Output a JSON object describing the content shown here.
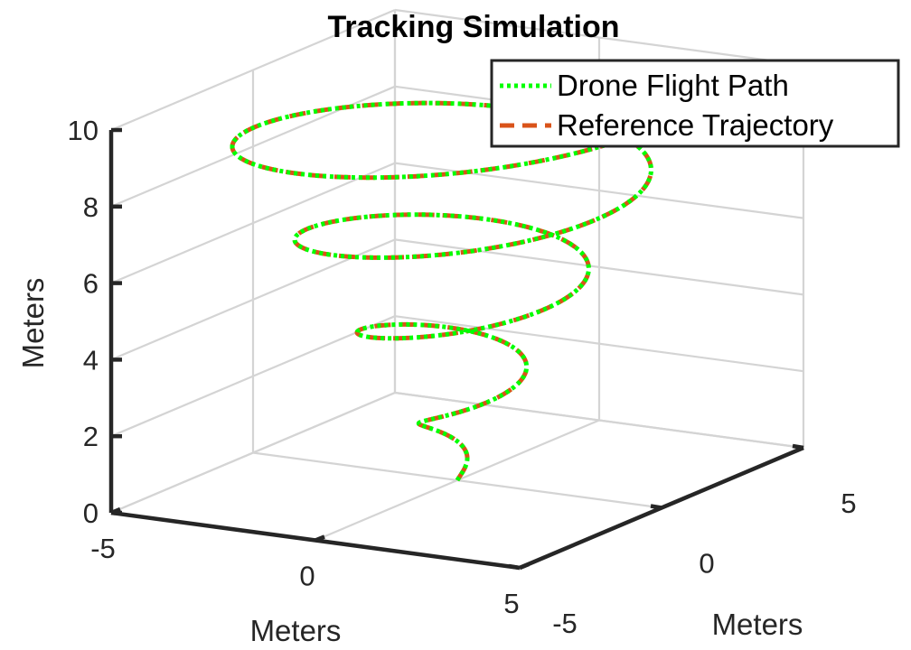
{
  "chart_data": {
    "type": "line3d",
    "title": "Tracking Simulation",
    "xlabel": "Meters",
    "ylabel": "Meters",
    "zlabel": "Meters",
    "xlim": [
      -5,
      5
    ],
    "ylim": [
      -5,
      5
    ],
    "zlim": [
      0,
      10
    ],
    "xticks": [
      "-5",
      "0",
      "5"
    ],
    "yticks": [
      "-5",
      "0",
      "5"
    ],
    "zticks": [
      "0",
      "2",
      "4",
      "6",
      "8",
      "10"
    ],
    "grid": true,
    "legend_position": "top-right",
    "series": [
      {
        "name": "Reference Trajectory",
        "style": "dashed",
        "color": "#D95319",
        "t_range": [
          0,
          25.13
        ],
        "x_formula": "0.2*t*cos(t)",
        "y_formula": "0.2*t*sin(t)",
        "z_formula": "0.4*t"
      },
      {
        "name": "Drone Flight Path",
        "style": "dotted",
        "color": "#00FF00",
        "t_range": [
          0,
          25.13
        ],
        "x_formula": "0.2*t*cos(t)",
        "y_formula": "0.2*t*sin(t)",
        "z_formula": "0.4*t"
      }
    ]
  },
  "legend": {
    "items": [
      {
        "label": "Drone Flight Path",
        "color": "#00FF00",
        "style": "dotted"
      },
      {
        "label": "Reference Trajectory",
        "color": "#D95319",
        "style": "dashed"
      }
    ]
  }
}
